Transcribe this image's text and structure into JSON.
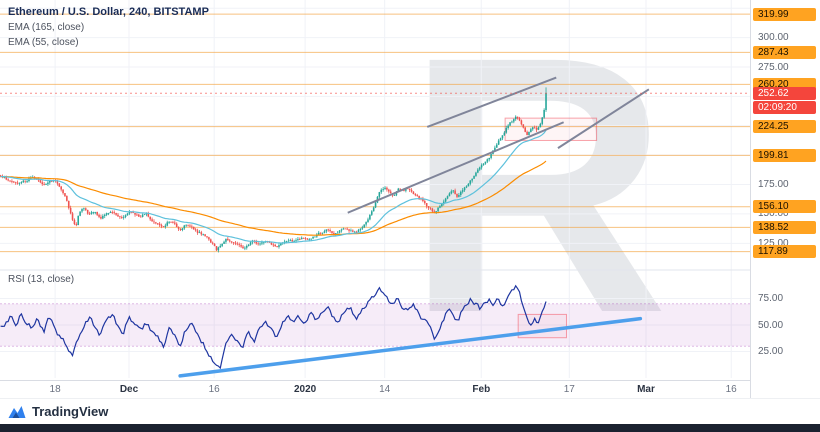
{
  "header": {
    "symbol_title": "Ethereum / U.S. Dollar, 240, BITSTAMP"
  },
  "watermark_text": "R",
  "footer": {
    "brand": "TradingView"
  },
  "chart_data": {
    "type": "candlestick",
    "symbol": "Ethereum / U.S. Dollar",
    "interval": "240",
    "exchange": "BITSTAMP",
    "time": {
      "day_range": [
        -5.7,
        126.3
      ],
      "ticks": [
        {
          "label": "18",
          "day": 4,
          "major": false
        },
        {
          "label": "Dec",
          "day": 17,
          "major": true
        },
        {
          "label": "16",
          "day": 32,
          "major": false
        },
        {
          "label": "2020",
          "day": 48,
          "major": true
        },
        {
          "label": "14",
          "day": 62,
          "major": false
        },
        {
          "label": "Feb",
          "day": 79,
          "major": true
        },
        {
          "label": "17",
          "day": 94.5,
          "major": false
        },
        {
          "label": "Mar",
          "day": 108,
          "major": true
        },
        {
          "label": "16",
          "day": 123,
          "major": false
        }
      ]
    },
    "price": {
      "range": [
        104,
        332
      ],
      "grid_step": 25,
      "plain_ticks": [
        300,
        275,
        175,
        150,
        125
      ],
      "orange_levels": [
        319.99,
        287.43,
        260.2,
        224.25,
        199.81,
        156.1,
        138.52,
        117.89
      ],
      "last": 252.62,
      "countdown": "02:09:20",
      "close_anchors": [
        [
          -6,
          184
        ],
        [
          -4,
          178
        ],
        [
          -2,
          176
        ],
        [
          0,
          181
        ],
        [
          1,
          177
        ],
        [
          2,
          174
        ],
        [
          3,
          178
        ],
        [
          4,
          180
        ],
        [
          5,
          172
        ],
        [
          6,
          163
        ],
        [
          7,
          147
        ],
        [
          7.6,
          139
        ],
        [
          8.2,
          151
        ],
        [
          9,
          154
        ],
        [
          10,
          149
        ],
        [
          11,
          152
        ],
        [
          12,
          146
        ],
        [
          13,
          150
        ],
        [
          14,
          153
        ],
        [
          15,
          149
        ],
        [
          16,
          146
        ],
        [
          17,
          153
        ],
        [
          18,
          151
        ],
        [
          19,
          147
        ],
        [
          20,
          150
        ],
        [
          21,
          145
        ],
        [
          22,
          142
        ],
        [
          23,
          138
        ],
        [
          24,
          144
        ],
        [
          25,
          141
        ],
        [
          26,
          136
        ],
        [
          27,
          141
        ],
        [
          28,
          139
        ],
        [
          29,
          135
        ],
        [
          30,
          133
        ],
        [
          31,
          129
        ],
        [
          31.8,
          124
        ],
        [
          32.4,
          119
        ],
        [
          33,
          123
        ],
        [
          34,
          129
        ],
        [
          35,
          127
        ],
        [
          36,
          124
        ],
        [
          37,
          121
        ],
        [
          38,
          124
        ],
        [
          39,
          127
        ],
        [
          40,
          124
        ],
        [
          41,
          126
        ],
        [
          42,
          123
        ],
        [
          43,
          121
        ],
        [
          44,
          125
        ],
        [
          45,
          128
        ],
        [
          46,
          126
        ],
        [
          47,
          128
        ],
        [
          48,
          130
        ],
        [
          49,
          128
        ],
        [
          50,
          132
        ],
        [
          51,
          134
        ],
        [
          52,
          137
        ],
        [
          53,
          133
        ],
        [
          54,
          135
        ],
        [
          55,
          138
        ],
        [
          56,
          136
        ],
        [
          57,
          135
        ],
        [
          58,
          139
        ],
        [
          59,
          143
        ],
        [
          59.6,
          150
        ],
        [
          60.4,
          160
        ],
        [
          61.2,
          169
        ],
        [
          62,
          173
        ],
        [
          62.8,
          169
        ],
        [
          63.6,
          166
        ],
        [
          64.4,
          171
        ],
        [
          65.2,
          169
        ],
        [
          66,
          172
        ],
        [
          67,
          167
        ],
        [
          68,
          163
        ],
        [
          69,
          160
        ],
        [
          70,
          154
        ],
        [
          70.8,
          151
        ],
        [
          71.6,
          156
        ],
        [
          72.4,
          161
        ],
        [
          73.2,
          166
        ],
        [
          74,
          169
        ],
        [
          74.8,
          164
        ],
        [
          75.6,
          169
        ],
        [
          76.4,
          174
        ],
        [
          77.2,
          179
        ],
        [
          78,
          185
        ],
        [
          78.8,
          190
        ],
        [
          79.6,
          193
        ],
        [
          80.4,
          198
        ],
        [
          81.2,
          205
        ],
        [
          82,
          211
        ],
        [
          82.8,
          217
        ],
        [
          83.6,
          225
        ],
        [
          84.4,
          229
        ],
        [
          85.2,
          234
        ],
        [
          85.8,
          229
        ],
        [
          86.4,
          223
        ],
        [
          87,
          217
        ],
        [
          87.6,
          222
        ],
        [
          88.2,
          226
        ],
        [
          88.8,
          221
        ],
        [
          89.4,
          227
        ],
        [
          90,
          236
        ],
        [
          90.3,
          245
        ],
        [
          90.65,
          252.62
        ]
      ]
    },
    "ema": [
      {
        "label": "EMA (165, close)",
        "period": 165,
        "color": "#fb8c00"
      },
      {
        "label": "EMA (55, close)",
        "period": 55,
        "color": "#5ec1dc"
      }
    ],
    "rsi": {
      "label": "RSI (13, close)",
      "ticks": [
        75,
        50,
        25
      ],
      "band": [
        30,
        70
      ],
      "range": [
        0,
        100
      ],
      "anchors": [
        [
          -6,
          54
        ],
        [
          -5,
          48
        ],
        [
          -4,
          58
        ],
        [
          -3,
          50
        ],
        [
          -2,
          62
        ],
        [
          -1,
          54
        ],
        [
          0,
          47
        ],
        [
          1,
          55
        ],
        [
          2,
          43
        ],
        [
          3,
          57
        ],
        [
          4,
          50
        ],
        [
          5,
          38
        ],
        [
          6,
          30
        ],
        [
          7,
          20
        ],
        [
          8,
          34
        ],
        [
          9,
          49
        ],
        [
          10,
          56
        ],
        [
          11,
          47
        ],
        [
          12,
          40
        ],
        [
          13,
          52
        ],
        [
          14,
          59
        ],
        [
          15,
          49
        ],
        [
          16,
          43
        ],
        [
          17,
          57
        ],
        [
          18,
          51
        ],
        [
          19,
          42
        ],
        [
          20,
          52
        ],
        [
          21,
          44
        ],
        [
          22,
          37
        ],
        [
          23,
          29
        ],
        [
          24,
          46
        ],
        [
          25,
          39
        ],
        [
          26,
          31
        ],
        [
          27,
          46
        ],
        [
          28,
          50
        ],
        [
          29,
          40
        ],
        [
          30,
          34
        ],
        [
          31,
          24
        ],
        [
          32,
          13
        ],
        [
          33,
          8
        ],
        [
          34,
          31
        ],
        [
          35,
          43
        ],
        [
          36,
          37
        ],
        [
          37,
          29
        ],
        [
          38,
          43
        ],
        [
          39,
          35
        ],
        [
          40,
          49
        ],
        [
          41,
          53
        ],
        [
          42,
          45
        ],
        [
          43,
          38
        ],
        [
          44,
          53
        ],
        [
          45,
          59
        ],
        [
          46,
          49
        ],
        [
          47,
          56
        ],
        [
          48,
          51
        ],
        [
          49,
          61
        ],
        [
          50,
          56
        ],
        [
          51,
          65
        ],
        [
          52,
          69
        ],
        [
          53,
          57
        ],
        [
          54,
          51
        ],
        [
          55,
          63
        ],
        [
          56,
          67
        ],
        [
          57,
          57
        ],
        [
          58,
          63
        ],
        [
          59,
          72
        ],
        [
          60,
          79
        ],
        [
          61,
          85
        ],
        [
          62,
          80
        ],
        [
          63,
          69
        ],
        [
          64,
          76
        ],
        [
          65,
          70
        ],
        [
          66,
          63
        ],
        [
          67,
          71
        ],
        [
          68,
          61
        ],
        [
          69,
          54
        ],
        [
          70,
          44
        ],
        [
          70.8,
          37
        ],
        [
          71.6,
          46
        ],
        [
          72.4,
          56
        ],
        [
          73.2,
          65
        ],
        [
          74,
          58
        ],
        [
          74.8,
          52
        ],
        [
          75.6,
          64
        ],
        [
          76.4,
          70
        ],
        [
          77.2,
          75
        ],
        [
          78,
          70
        ],
        [
          78.8,
          64
        ],
        [
          79.6,
          71
        ],
        [
          80.4,
          76
        ],
        [
          81.2,
          70
        ],
        [
          82,
          75
        ],
        [
          82.8,
          68
        ],
        [
          83.6,
          77
        ],
        [
          84.4,
          82
        ],
        [
          85.2,
          87
        ],
        [
          85.8,
          79
        ],
        [
          86.4,
          67
        ],
        [
          87,
          56
        ],
        [
          87.6,
          51
        ],
        [
          88.2,
          58
        ],
        [
          89,
          53
        ],
        [
          89.6,
          61
        ],
        [
          90.1,
          68
        ],
        [
          90.65,
          74
        ]
      ]
    },
    "trendlines": {
      "price": [
        {
          "d1": 69.5,
          "p1": 224,
          "d2": 92.2,
          "p2": 266
        },
        {
          "d1": 55.5,
          "p1": 151,
          "d2": 93.5,
          "p2": 228
        },
        {
          "d1": 92.5,
          "p1": 206,
          "d2": 108.5,
          "p2": 256
        }
      ],
      "rsi": {
        "d1": 26,
        "v1": 2,
        "d2": 107,
        "v2": 56
      }
    },
    "boxes": {
      "price": {
        "d1": 83.2,
        "p1": 212.5,
        "d2": 99.3,
        "p2": 231.5
      },
      "rsi": {
        "d1": 85.5,
        "v1": 38,
        "d2": 94,
        "v2": 60
      }
    },
    "colors": {
      "up": "#26a69a",
      "down": "#ef5350",
      "grid": "#f0f2f7",
      "divider": "#e2e5ec",
      "level_line": "#f2a23c",
      "band_fill": "rgba(156,39,176,0.09)",
      "band_edge": "rgba(156,39,176,0.30)",
      "box_fill": "rgba(242,54,69,0.05)",
      "box_stroke": "rgba(242,54,69,0.45)",
      "trend_gray": "#80859a",
      "trend_blue": "#4d9fec",
      "rsi_line": "#1e35a0",
      "badge_orange_bg": "#ffa321",
      "badge_red_bg": "#f4453c",
      "axis_text": "#5d6470",
      "title_text": "#1a2c56",
      "watermark": "rgba(90,99,120,0.15)",
      "logo_blue": "#2f80ed"
    }
  }
}
